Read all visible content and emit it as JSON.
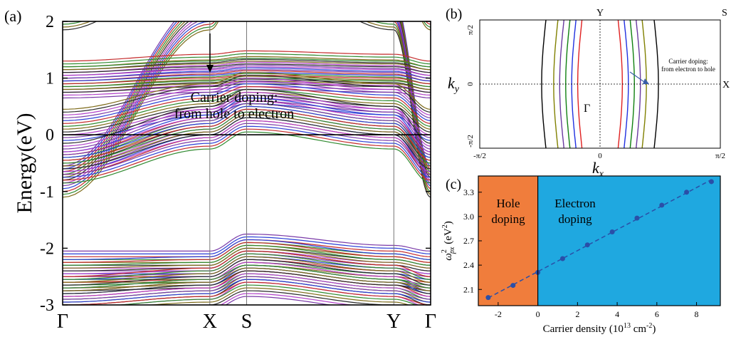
{
  "panels": {
    "a": {
      "label": "(a)"
    },
    "b": {
      "label": "(b)"
    },
    "c": {
      "label": "(c)"
    }
  },
  "colors": {
    "bands": [
      "#7a3aa8",
      "#2a3fd6",
      "#c42a2a",
      "#2f8a2f",
      "#7d6a18",
      "#2b2b2b",
      "#b040c8"
    ],
    "contours": [
      "#e02020",
      "#2030e0",
      "#108010",
      "#6a3aa0",
      "#808000",
      "#000000"
    ],
    "hole_region": "#f07d3c",
    "electron_region": "#1fa8e0",
    "fit_line": "#2a4fa8",
    "markers": "#2a4fa8"
  },
  "chart_data": [
    {
      "type": "line",
      "panel": "a",
      "title": "",
      "ylabel": "Energy(eV)",
      "xlabel": "",
      "ylim": [
        -3,
        2
      ],
      "yticks": [
        -3,
        -2,
        -1,
        0,
        1,
        2
      ],
      "xticks": [
        "Γ",
        "X",
        "S",
        "Y",
        "Γ"
      ],
      "kpath": [
        0,
        1.0,
        1.25,
        2.25,
        2.5
      ],
      "annotation": {
        "line1": "Carrier doping:",
        "line2": "from hole to electron"
      },
      "fermi_level": 0,
      "num_doping_levels": 12,
      "bands": [
        {
          "name": "steep band left",
          "energies": [
            -0.55,
            2.4,
            3.6,
            3.6,
            2.4
          ]
        },
        {
          "name": "steep band right",
          "energies": [
            2.4,
            3.6,
            3.6,
            2.4,
            -0.55
          ]
        },
        {
          "name": "upper flat band 1",
          "energies": [
            1.3,
            1.42,
            1.48,
            1.42,
            1.3
          ]
        },
        {
          "name": "upper flat band 2",
          "energies": [
            1.2,
            1.3,
            1.35,
            1.3,
            1.2
          ]
        },
        {
          "name": "mid band 1",
          "energies": [
            0.45,
            0.9,
            1.1,
            0.9,
            0.45
          ]
        },
        {
          "name": "mid band 2",
          "energies": [
            -0.15,
            0.5,
            0.8,
            0.5,
            -0.15
          ]
        },
        {
          "name": "mid band 3",
          "energies": [
            -0.3,
            0.3,
            0.6,
            0.3,
            -0.3
          ]
        },
        {
          "name": "lower band 1",
          "energies": [
            -2.05,
            -2.05,
            -1.75,
            -1.95,
            -2.05
          ]
        },
        {
          "name": "lower band 2",
          "energies": [
            -2.2,
            -2.15,
            -1.85,
            -2.1,
            -2.2
          ]
        },
        {
          "name": "lower band 3",
          "energies": [
            -2.5,
            -2.35,
            -2.05,
            -2.3,
            -2.5
          ]
        },
        {
          "name": "lower band 4",
          "energies": [
            -2.7,
            -2.55,
            -2.3,
            -2.55,
            -2.7
          ]
        }
      ],
      "band_shift_per_level": -0.05
    },
    {
      "type": "line",
      "panel": "b",
      "title": "",
      "xlabel": "k",
      "xlabel_sub": "x",
      "ylabel": "k",
      "ylabel_sub": "y",
      "xticks": [
        "-π/2",
        "0",
        "π/2"
      ],
      "yticks": [
        "π/2",
        "0",
        "-π/2"
      ],
      "point_labels": {
        "gamma": "Γ",
        "y": "Y",
        "x": "X",
        "s": "S"
      },
      "annotation": {
        "line1": "Carrier doping:",
        "line2": "from electron to hole"
      },
      "contours_kx": [
        0.15,
        0.2,
        0.25,
        0.3,
        0.35,
        0.45
      ]
    },
    {
      "type": "line",
      "panel": "c",
      "title": "",
      "xlabel": "Carrier density (10",
      "xlabel_exp": "13",
      "xlabel_unit": " cm",
      "xlabel_unit_exp": "-2",
      "xlabel_end": ")",
      "ylabel": "ω",
      "ylabel_sup": "2",
      "ylabel_sub": "px",
      "ylabel_unit": "(eV",
      "ylabel_unit_exp": "2",
      "ylabel_end": ")",
      "xlim": [
        -3,
        9.2
      ],
      "ylim": [
        1.9,
        3.5
      ],
      "xticks": [
        -2,
        0,
        2,
        4,
        6,
        8
      ],
      "yticks": [
        2.1,
        2.4,
        2.7,
        3.0,
        3.3
      ],
      "regions": {
        "hole": {
          "line1": "Hole",
          "line2": "doping"
        },
        "electron": {
          "line1": "Electron",
          "line2": "doping"
        }
      },
      "x": [
        -2.5,
        -1.25,
        0,
        1.25,
        2.5,
        3.75,
        5.0,
        6.25,
        7.5,
        8.75
      ],
      "y": [
        2.0,
        2.15,
        2.31,
        2.48,
        2.65,
        2.81,
        2.98,
        3.14,
        3.3,
        3.43
      ]
    }
  ]
}
